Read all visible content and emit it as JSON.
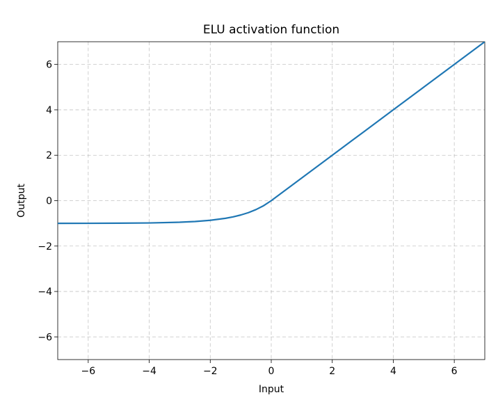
{
  "chart_data": {
    "type": "line",
    "title": "ELU activation function",
    "xlabel": "Input",
    "ylabel": "Output",
    "xlim": [
      -7,
      7
    ],
    "ylim": [
      -7,
      7
    ],
    "xticks": [
      -6,
      -4,
      -2,
      0,
      2,
      4,
      6
    ],
    "yticks": [
      -6,
      -4,
      -2,
      0,
      2,
      4,
      6
    ],
    "xtick_labels": [
      "−6",
      "−4",
      "−2",
      "0",
      "2",
      "4",
      "6"
    ],
    "ytick_labels": [
      "−6",
      "−4",
      "−2",
      "0",
      "2",
      "4",
      "6"
    ],
    "grid": true,
    "series": [
      {
        "color": "#1f77b4",
        "x": [
          -7,
          -6,
          -5,
          -4,
          -3,
          -2.5,
          -2,
          -1.5,
          -1.25,
          -1,
          -0.75,
          -0.5,
          -0.25,
          0,
          1,
          2,
          3,
          4,
          5,
          6,
          7
        ],
        "y": [
          -0.999,
          -0.998,
          -0.993,
          -0.982,
          -0.95,
          -0.918,
          -0.865,
          -0.777,
          -0.713,
          -0.632,
          -0.528,
          -0.393,
          -0.221,
          0,
          1,
          2,
          3,
          4,
          5,
          6,
          7
        ]
      }
    ]
  }
}
